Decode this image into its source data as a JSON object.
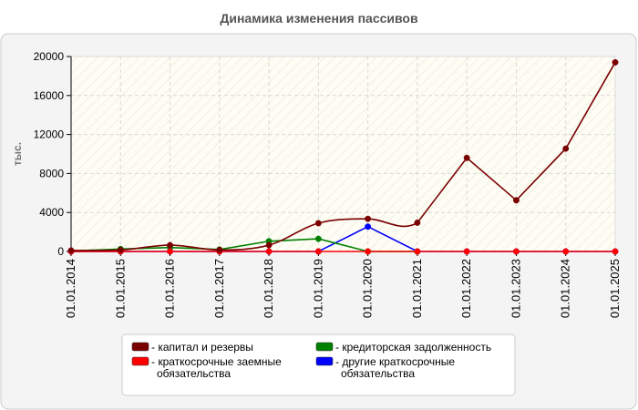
{
  "chart_data": {
    "type": "line",
    "title": "Динамика изменения пассивов",
    "xlabel": "",
    "ylabel": "тыс.",
    "categories": [
      "01.01.2014",
      "01.01.2015",
      "01.01.2016",
      "01.01.2017",
      "01.01.2018",
      "01.01.2019",
      "01.01.2020",
      "01.01.2021",
      "01.01.2022",
      "01.01.2023",
      "01.01.2024",
      "01.01.2025"
    ],
    "ylim": [
      0,
      20000
    ],
    "yticks": [
      0,
      4000,
      8000,
      12000,
      16000,
      20000
    ],
    "grid": true,
    "legend_position": "bottom",
    "series": [
      {
        "name": "- капитал и резервы",
        "color": "#7a0000",
        "values": [
          100,
          150,
          650,
          150,
          650,
          2900,
          3350,
          2950,
          9600,
          5250,
          10550,
          19400
        ],
        "smooth_segments": [
          0,
          1,
          2,
          3,
          4,
          5,
          6
        ]
      },
      {
        "name": "- кредиторская задолженность",
        "color": "#008000",
        "values": [
          50,
          250,
          400,
          200,
          1050,
          1300,
          0,
          0,
          null,
          null,
          null,
          null
        ]
      },
      {
        "name": "- краткосрочные заемные обязательства",
        "color": "#ff0000",
        "values": [
          0,
          0,
          0,
          0,
          0,
          0,
          0,
          0,
          0,
          0,
          0,
          0
        ]
      },
      {
        "name": "- другие краткосрочные обязательства",
        "color": "#0000ff",
        "values": [
          0,
          0,
          0,
          0,
          0,
          0,
          2550,
          0,
          0,
          0,
          0,
          0
        ]
      }
    ],
    "legend_order": [
      0,
      1,
      2,
      3
    ]
  }
}
